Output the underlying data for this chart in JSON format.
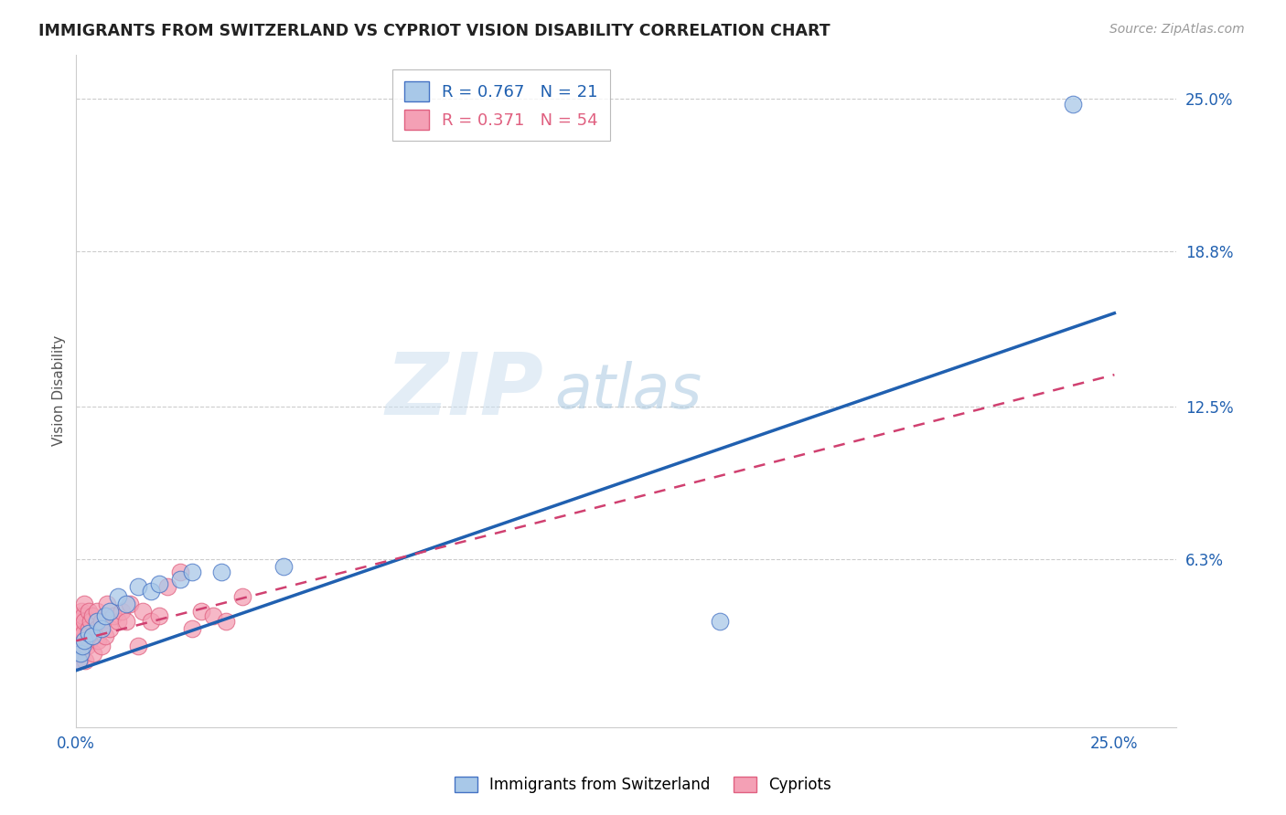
{
  "title": "IMMIGRANTS FROM SWITZERLAND VS CYPRIOT VISION DISABILITY CORRELATION CHART",
  "source": "Source: ZipAtlas.com",
  "ylabel_label": "Vision Disability",
  "xlim": [
    0.0,
    0.265
  ],
  "ylim": [
    -0.005,
    0.268
  ],
  "ytick_positions": [
    0.063,
    0.125,
    0.188,
    0.25
  ],
  "ytick_labels": [
    "6.3%",
    "12.5%",
    "18.8%",
    "25.0%"
  ],
  "xtick_positions": [
    0.0,
    0.25
  ],
  "xtick_labels": [
    "0.0%",
    "25.0%"
  ],
  "legend_r_blue": "0.767",
  "legend_n_blue": "21",
  "legend_r_pink": "0.371",
  "legend_n_pink": "54",
  "blue_scatter_color": "#a8c8e8",
  "blue_edge_color": "#4472c4",
  "pink_scatter_color": "#f4a0b5",
  "pink_edge_color": "#e06080",
  "blue_line_color": "#2060b0",
  "pink_line_color": "#d04070",
  "watermark_zip": "ZIP",
  "watermark_atlas": "atlas",
  "blue_line_x0": 0.0,
  "blue_line_y0": 0.018,
  "blue_line_x1": 0.25,
  "blue_line_y1": 0.163,
  "pink_line_x0": 0.0,
  "pink_line_y0": 0.03,
  "pink_line_x1": 0.25,
  "pink_line_y1": 0.138,
  "swiss_x": [
    0.0005,
    0.001,
    0.0015,
    0.002,
    0.003,
    0.004,
    0.005,
    0.006,
    0.007,
    0.008,
    0.01,
    0.012,
    0.015,
    0.018,
    0.02,
    0.025,
    0.028,
    0.035,
    0.05,
    0.155,
    0.24
  ],
  "swiss_y": [
    0.022,
    0.025,
    0.028,
    0.03,
    0.033,
    0.032,
    0.038,
    0.035,
    0.04,
    0.042,
    0.048,
    0.045,
    0.052,
    0.05,
    0.053,
    0.055,
    0.058,
    0.058,
    0.06,
    0.038,
    0.248
  ],
  "cyp_x": [
    0.0002,
    0.0003,
    0.0004,
    0.0005,
    0.0005,
    0.0006,
    0.0007,
    0.0008,
    0.0008,
    0.0009,
    0.001,
    0.001,
    0.0012,
    0.0013,
    0.0014,
    0.0015,
    0.0016,
    0.0017,
    0.0018,
    0.002,
    0.002,
    0.0022,
    0.0025,
    0.003,
    0.003,
    0.0032,
    0.0035,
    0.004,
    0.004,
    0.0042,
    0.005,
    0.005,
    0.0052,
    0.006,
    0.006,
    0.007,
    0.0075,
    0.008,
    0.009,
    0.01,
    0.011,
    0.012,
    0.013,
    0.015,
    0.016,
    0.018,
    0.02,
    0.022,
    0.025,
    0.028,
    0.03,
    0.033,
    0.036,
    0.04
  ],
  "cyp_y": [
    0.022,
    0.025,
    0.03,
    0.028,
    0.032,
    0.035,
    0.038,
    0.022,
    0.04,
    0.028,
    0.032,
    0.038,
    0.042,
    0.025,
    0.03,
    0.035,
    0.028,
    0.04,
    0.033,
    0.038,
    0.045,
    0.022,
    0.028,
    0.035,
    0.042,
    0.03,
    0.038,
    0.032,
    0.04,
    0.025,
    0.035,
    0.042,
    0.03,
    0.038,
    0.028,
    0.032,
    0.045,
    0.035,
    0.04,
    0.038,
    0.042,
    0.038,
    0.045,
    0.028,
    0.042,
    0.038,
    0.04,
    0.052,
    0.058,
    0.035,
    0.042,
    0.04,
    0.038,
    0.048
  ]
}
